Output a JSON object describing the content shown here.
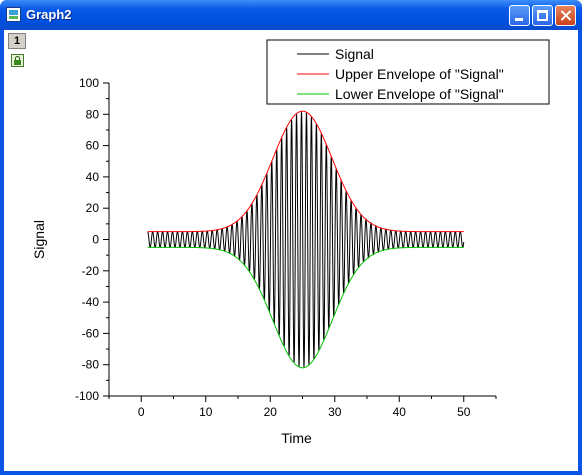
{
  "window": {
    "title": "Graph2",
    "layer_label": "1",
    "colors": {
      "titlebar": "#0a5ae8",
      "frame": "#0a55e6"
    }
  },
  "chart_data": {
    "type": "line",
    "xlabel": "Time",
    "ylabel": "Signal",
    "xlim": [
      -5,
      55
    ],
    "ylim": [
      -100,
      100
    ],
    "x_ticks": [
      0,
      10,
      20,
      30,
      40,
      50
    ],
    "y_ticks": [
      -100,
      -80,
      -60,
      -40,
      -20,
      0,
      20,
      40,
      60,
      80,
      100
    ],
    "grid": false,
    "legend_position": "top-right",
    "signal_model": {
      "x_range": [
        1,
        50
      ],
      "baseline_amplitude": 5,
      "peak_amplitude": 82,
      "peak_x": 25,
      "width_sigma": 4.6,
      "cycles_per_unit": 1.3
    },
    "series": [
      {
        "name": "Signal",
        "color": "#000000"
      },
      {
        "name": "Upper Envelope of \"Signal\"",
        "color": "#ff0000"
      },
      {
        "name": "Lower Envelope of \"Signal\"",
        "color": "#00c000"
      }
    ]
  }
}
